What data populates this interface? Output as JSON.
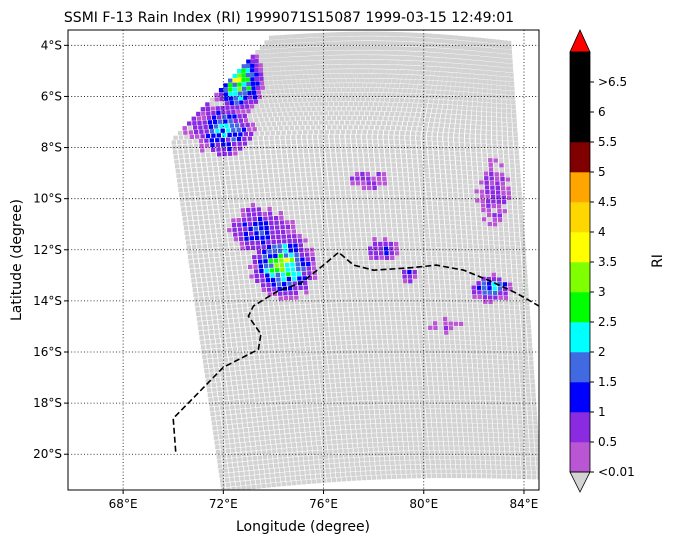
{
  "chart_data": {
    "type": "scatter",
    "title": "SSMI F-13 Rain Index (RI) 1999071S15087 1999-03-15 12:49:01",
    "xlabel": "Longitude (degree)",
    "ylabel": "Latitude (degree)",
    "xlim": [
      65.8,
      84.6
    ],
    "ylim": [
      -21.4,
      -3.4
    ],
    "x_ticks": [
      {
        "value": 68,
        "label": "68°E"
      },
      {
        "value": 72,
        "label": "72°E"
      },
      {
        "value": 76,
        "label": "76°E"
      },
      {
        "value": 80,
        "label": "80°E"
      },
      {
        "value": 84,
        "label": "84°E"
      }
    ],
    "y_ticks": [
      {
        "value": -4,
        "label": "4°S"
      },
      {
        "value": -6,
        "label": "6°S"
      },
      {
        "value": -8,
        "label": "8°S"
      },
      {
        "value": -10,
        "label": "10°S"
      },
      {
        "value": -12,
        "label": "12°S"
      },
      {
        "value": -14,
        "label": "14°S"
      },
      {
        "value": -16,
        "label": "16°S"
      },
      {
        "value": -18,
        "label": "18°S"
      },
      {
        "value": -20,
        "label": "20°S"
      }
    ],
    "grid": true,
    "swath": {
      "top_left": [
        73.9,
        -3.7
      ],
      "top_right": [
        83.4,
        -3.9
      ],
      "bottom_right": [
        84.6,
        -20.9
      ],
      "bottom_left": [
        72.0,
        -21.4
      ],
      "left_mid": [
        70.0,
        -7.7
      ],
      "fill_color": "#d3d3d3"
    },
    "track": [
      [
        70.1,
        -19.9
      ],
      [
        70.0,
        -18.6
      ],
      [
        71.0,
        -17.6
      ],
      [
        72.0,
        -16.6
      ],
      [
        73.4,
        -15.9
      ],
      [
        73.5,
        -15.3
      ],
      [
        73.0,
        -14.6
      ],
      [
        73.2,
        -14.2
      ],
      [
        74.2,
        -13.6
      ],
      [
        75.1,
        -13.3
      ],
      [
        76.0,
        -12.6
      ],
      [
        76.6,
        -12.1
      ],
      [
        77.2,
        -12.6
      ],
      [
        78.0,
        -12.8
      ],
      [
        79.5,
        -12.7
      ],
      [
        80.5,
        -12.6
      ],
      [
        81.6,
        -12.8
      ],
      [
        82.6,
        -13.2
      ],
      [
        83.7,
        -13.7
      ],
      [
        84.6,
        -14.2
      ]
    ],
    "rain_cells": [
      {
        "center": [
          72.6,
          -5.4
        ],
        "spread": [
          0.7,
          0.9
        ],
        "peak": 3.0
      },
      {
        "center": [
          72.0,
          -7.3
        ],
        "spread": [
          0.9,
          0.8
        ],
        "peak": 2.0
      },
      {
        "center": [
          71.0,
          -6.7
        ],
        "spread": [
          1.0,
          1.2
        ],
        "peak": 0.6
      },
      {
        "center": [
          74.4,
          -12.6
        ],
        "spread": [
          0.9,
          0.9
        ],
        "peak": 3.0
      },
      {
        "center": [
          73.5,
          -11.2
        ],
        "spread": [
          1.1,
          0.8
        ],
        "peak": 1.3
      },
      {
        "center": [
          78.3,
          -12.0
        ],
        "spread": [
          0.6,
          0.4
        ],
        "peak": 1.2
      },
      {
        "center": [
          79.4,
          -13.0
        ],
        "spread": [
          0.3,
          0.3
        ],
        "peak": 1.0
      },
      {
        "center": [
          82.7,
          -13.5
        ],
        "spread": [
          0.6,
          0.4
        ],
        "peak": 2.0
      },
      {
        "center": [
          77.8,
          -9.3
        ],
        "spread": [
          0.8,
          0.4
        ],
        "peak": 0.8
      },
      {
        "center": [
          82.8,
          -9.8
        ],
        "spread": [
          0.8,
          1.6
        ],
        "peak": 0.6
      },
      {
        "center": [
          81.0,
          -15.0
        ],
        "spread": [
          1.5,
          0.6
        ],
        "peak": 0.4
      }
    ],
    "colorbar": {
      "label": "RI",
      "levels": [
        0.01,
        0.5,
        1,
        1.5,
        2,
        2.5,
        3,
        3.5,
        4,
        4.5,
        5,
        5.5,
        6,
        6.5
      ],
      "colors": [
        "#ba55d3",
        "#8a2be2",
        "#0000ff",
        "#4169e1",
        "#00ffff",
        "#00ff00",
        "#7fff00",
        "#ffff00",
        "#ffd700",
        "#ffa500",
        "#800000",
        "#000000",
        "#000000",
        "#000000"
      ],
      "under_color": "#d3d3d3",
      "over_color": "#ff0000",
      "tick_labels": [
        "<0.01",
        "0.5",
        "1",
        "1.5",
        "2",
        "2.5",
        "3",
        "3.5",
        "4",
        "4.5",
        "5",
        "5.5",
        "6",
        ">6.5"
      ]
    }
  }
}
